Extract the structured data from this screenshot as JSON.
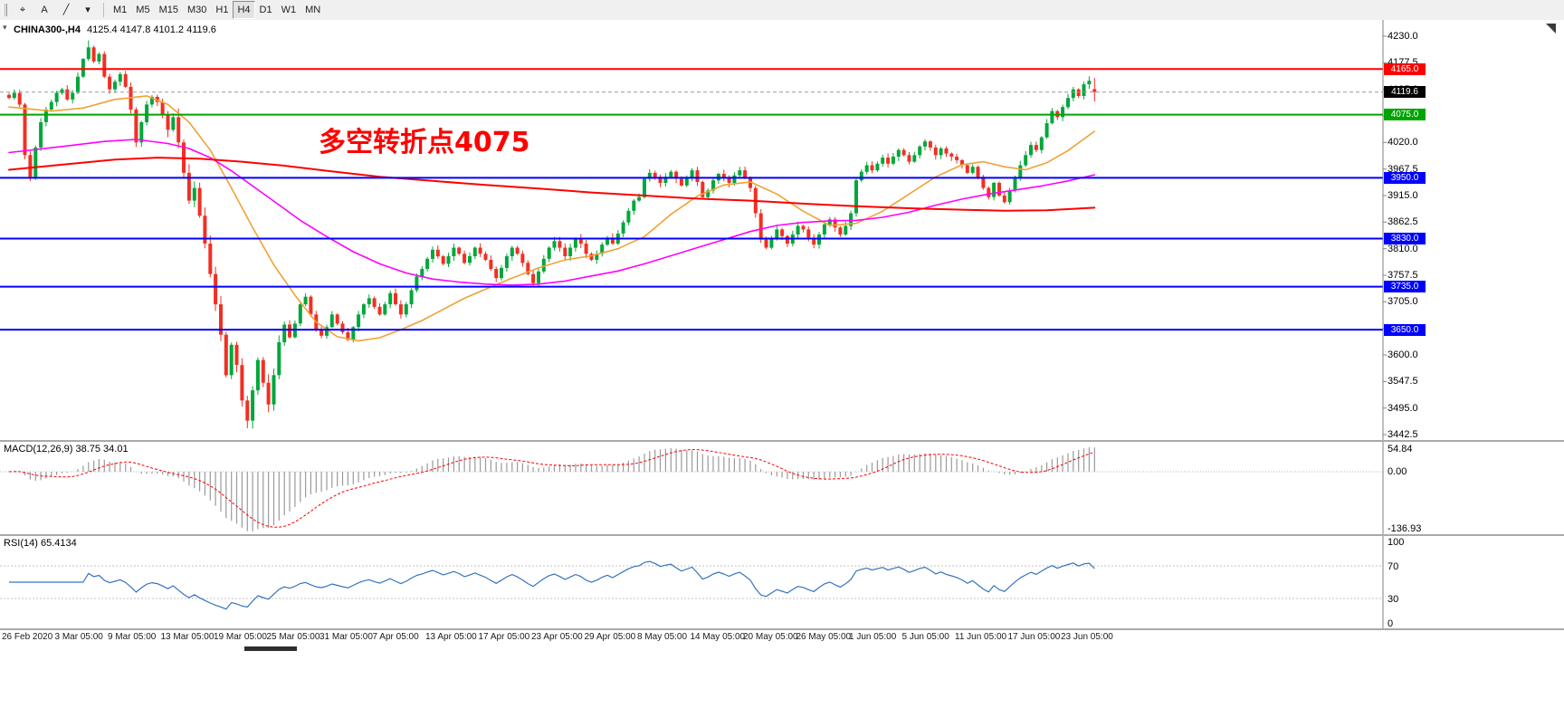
{
  "toolbar": {
    "tools": [
      {
        "name": "crosshair-tool",
        "glyph": "⌖"
      },
      {
        "name": "text-label-tool",
        "glyph": "A"
      },
      {
        "name": "trendline-tool",
        "glyph": "╱"
      },
      {
        "name": "tools-dropdown",
        "glyph": "▾"
      }
    ],
    "timeframes": [
      {
        "label": "M1",
        "active": false
      },
      {
        "label": "M5",
        "active": false
      },
      {
        "label": "M15",
        "active": false
      },
      {
        "label": "M30",
        "active": false
      },
      {
        "label": "H1",
        "active": false
      },
      {
        "label": "H4",
        "active": true
      },
      {
        "label": "D1",
        "active": false
      },
      {
        "label": "W1",
        "active": false
      },
      {
        "label": "MN",
        "active": false
      }
    ]
  },
  "chart": {
    "title": "CHINA300-,H4",
    "ohlc": "4125.4 4147.8 4101.2 4119.6",
    "annotation": {
      "text": "多空转折点4075",
      "color": "#ff0000"
    }
  },
  "chart_data": {
    "type": "candlestick",
    "symbol": "CHINA300-",
    "timeframe": "H4",
    "up_color": "#02a73b",
    "down_color": "#f03023",
    "noise_seed": 20200624,
    "label_every": 10,
    "y_axis_ticks": [
      4230.0,
      4177.5,
      4125.0,
      4072.5,
      4020.0,
      3967.5,
      3915.0,
      3862.5,
      3810.0,
      3757.5,
      3705.0,
      3652.5,
      3600.0,
      3547.5,
      3495.0,
      3442.5
    ],
    "levels": [
      {
        "value": 4165.0,
        "color": "#ff0000",
        "width": 2
      },
      {
        "value": 4075.0,
        "color": "#00a400",
        "width": 2
      },
      {
        "value": 3950.0,
        "color": "#0000ff",
        "width": 2
      },
      {
        "value": 3830.0,
        "color": "#0000ff",
        "width": 2
      },
      {
        "value": 3735.0,
        "color": "#0000ff",
        "width": 2
      },
      {
        "value": 3650.0,
        "color": "#0000ff",
        "width": 2
      }
    ],
    "current_price": {
      "value": 4119.6,
      "badge_bg": "#000000"
    },
    "last_candle": {
      "open": 4125.4,
      "high": 4147.8,
      "low": 4101.2,
      "close": 4119.6
    },
    "extremes": {
      "peak_index": 15,
      "peak_high": 4222,
      "trough_index": 45,
      "trough_low": 3455
    },
    "closes": [
      4108,
      4118,
      4095,
      3995,
      3952,
      4010,
      4060,
      4085,
      4100,
      4118,
      4125,
      4105,
      4118,
      4150,
      4185,
      4208,
      4180,
      4195,
      4150,
      4125,
      4140,
      4155,
      4130,
      4085,
      4020,
      4060,
      4095,
      4110,
      4100,
      4075,
      4045,
      4070,
      4020,
      3960,
      3905,
      3930,
      3875,
      3820,
      3760,
      3700,
      3640,
      3560,
      3620,
      3580,
      3510,
      3470,
      3530,
      3590,
      3545,
      3502,
      3560,
      3625,
      3660,
      3635,
      3662,
      3700,
      3715,
      3680,
      3650,
      3638,
      3655,
      3680,
      3662,
      3645,
      3630,
      3655,
      3680,
      3700,
      3712,
      3695,
      3680,
      3700,
      3722,
      3700,
      3680,
      3700,
      3728,
      3755,
      3770,
      3790,
      3808,
      3795,
      3780,
      3795,
      3812,
      3800,
      3782,
      3795,
      3812,
      3800,
      3788,
      3770,
      3752,
      3772,
      3795,
      3812,
      3800,
      3782,
      3760,
      3742,
      3765,
      3790,
      3812,
      3825,
      3812,
      3795,
      3812,
      3830,
      3820,
      3800,
      3788,
      3800,
      3818,
      3832,
      3820,
      3840,
      3862,
      3885,
      3905,
      3912,
      3948,
      3960,
      3952,
      3940,
      3952,
      3962,
      3948,
      3935,
      3950,
      3965,
      3942,
      3912,
      3925,
      3945,
      3958,
      3950,
      3940,
      3955,
      3965,
      3950,
      3930,
      3880,
      3828,
      3812,
      3830,
      3848,
      3835,
      3820,
      3838,
      3855,
      3848,
      3832,
      3818,
      3838,
      3858,
      3868,
      3852,
      3838,
      3855,
      3880,
      3945,
      3962,
      3975,
      3965,
      3978,
      3990,
      3978,
      3992,
      4005,
      3995,
      3982,
      3995,
      4012,
      4022,
      4010,
      3995,
      4008,
      3998,
      3992,
      3985,
      3975,
      3960,
      3972,
      3952,
      3930,
      3912,
      3940,
      3915,
      3902,
      3925,
      3950,
      3975,
      3995,
      4015,
      4005,
      4030,
      4058,
      4082,
      4070,
      4090,
      4108,
      4125,
      4112,
      4135,
      4142,
      4120
    ],
    "moving_averages": [
      {
        "name": "ma-fast",
        "color": "#f0a235",
        "width": 1.6,
        "points": [
          [
            0,
            4090
          ],
          [
            8,
            4082
          ],
          [
            14,
            4088
          ],
          [
            20,
            4105
          ],
          [
            26,
            4112
          ],
          [
            30,
            4095
          ],
          [
            34,
            4060
          ],
          [
            38,
            4005
          ],
          [
            42,
            3930
          ],
          [
            46,
            3852
          ],
          [
            50,
            3778
          ],
          [
            54,
            3718
          ],
          [
            58,
            3665
          ],
          [
            62,
            3636
          ],
          [
            66,
            3628
          ],
          [
            70,
            3634
          ],
          [
            74,
            3650
          ],
          [
            78,
            3668
          ],
          [
            82,
            3690
          ],
          [
            86,
            3712
          ],
          [
            90,
            3730
          ],
          [
            95,
            3752
          ],
          [
            100,
            3772
          ],
          [
            105,
            3788
          ],
          [
            110,
            3796
          ],
          [
            115,
            3810
          ],
          [
            120,
            3834
          ],
          [
            125,
            3878
          ],
          [
            130,
            3914
          ],
          [
            135,
            3936
          ],
          [
            140,
            3942
          ],
          [
            145,
            3918
          ],
          [
            150,
            3884
          ],
          [
            155,
            3856
          ],
          [
            160,
            3860
          ],
          [
            165,
            3884
          ],
          [
            170,
            3918
          ],
          [
            175,
            3952
          ],
          [
            180,
            3976
          ],
          [
            184,
            3982
          ],
          [
            188,
            3972
          ],
          [
            192,
            3966
          ],
          [
            196,
            3980
          ],
          [
            200,
            4004
          ],
          [
            205,
            4042
          ]
        ]
      },
      {
        "name": "ma-medium",
        "color": "#ff00ff",
        "width": 1.6,
        "points": [
          [
            0,
            4000
          ],
          [
            10,
            4012
          ],
          [
            18,
            4022
          ],
          [
            24,
            4026
          ],
          [
            30,
            4018
          ],
          [
            34,
            4008
          ],
          [
            38,
            3990
          ],
          [
            42,
            3964
          ],
          [
            46,
            3934
          ],
          [
            50,
            3904
          ],
          [
            55,
            3866
          ],
          [
            60,
            3834
          ],
          [
            65,
            3804
          ],
          [
            70,
            3780
          ],
          [
            75,
            3762
          ],
          [
            80,
            3750
          ],
          [
            85,
            3744
          ],
          [
            90,
            3740
          ],
          [
            95,
            3738
          ],
          [
            100,
            3740
          ],
          [
            105,
            3746
          ],
          [
            110,
            3756
          ],
          [
            115,
            3766
          ],
          [
            120,
            3780
          ],
          [
            125,
            3796
          ],
          [
            130,
            3812
          ],
          [
            135,
            3828
          ],
          [
            140,
            3844
          ],
          [
            145,
            3856
          ],
          [
            150,
            3862
          ],
          [
            155,
            3865
          ],
          [
            160,
            3866
          ],
          [
            165,
            3872
          ],
          [
            170,
            3882
          ],
          [
            175,
            3896
          ],
          [
            180,
            3908
          ],
          [
            185,
            3918
          ],
          [
            190,
            3926
          ],
          [
            195,
            3934
          ],
          [
            200,
            3944
          ],
          [
            205,
            3956
          ]
        ]
      },
      {
        "name": "ma-slow",
        "color": "#ff0000",
        "width": 2,
        "points": [
          [
            0,
            3966
          ],
          [
            10,
            3976
          ],
          [
            20,
            3986
          ],
          [
            28,
            3990
          ],
          [
            36,
            3988
          ],
          [
            44,
            3982
          ],
          [
            52,
            3974
          ],
          [
            60,
            3964
          ],
          [
            70,
            3952
          ],
          [
            80,
            3944
          ],
          [
            90,
            3936
          ],
          [
            100,
            3929
          ],
          [
            110,
            3921
          ],
          [
            120,
            3915
          ],
          [
            130,
            3909
          ],
          [
            140,
            3905
          ],
          [
            150,
            3899
          ],
          [
            160,
            3894
          ],
          [
            170,
            3890
          ],
          [
            180,
            3887
          ],
          [
            188,
            3885
          ],
          [
            196,
            3886
          ],
          [
            205,
            3891
          ]
        ]
      }
    ],
    "indicators": {
      "macd": {
        "label": "MACD(12,26,9) 38.75 34.01",
        "axis": [
          "54.84",
          "0.00",
          "-136.93"
        ],
        "histogram_color": "#9a9a9a",
        "signal_color": "#ff0000"
      },
      "rsi": {
        "label": "RSI(14) 65.4134",
        "axis": [
          "100",
          "70",
          "30",
          "0"
        ],
        "levels": [
          70,
          30
        ],
        "line_color": "#3573c0"
      }
    },
    "x_labels": [
      "26 Feb 2020",
      "3 Mar 05:00",
      "9 Mar 05:00",
      "13 Mar 05:00",
      "19 Mar 05:00",
      "25 Mar 05:00",
      "31 Mar 05:00",
      "7 Apr 05:00",
      "13 Apr 05:00",
      "17 Apr 05:00",
      "23 Apr 05:00",
      "29 Apr 05:00",
      "8 May 05:00",
      "14 May 05:00",
      "20 May 05:00",
      "26 May 05:00",
      "1 Jun 05:00",
      "5 Jun 05:00",
      "11 Jun 05:00",
      "17 Jun 05:00",
      "23 Jun 05:00"
    ]
  }
}
